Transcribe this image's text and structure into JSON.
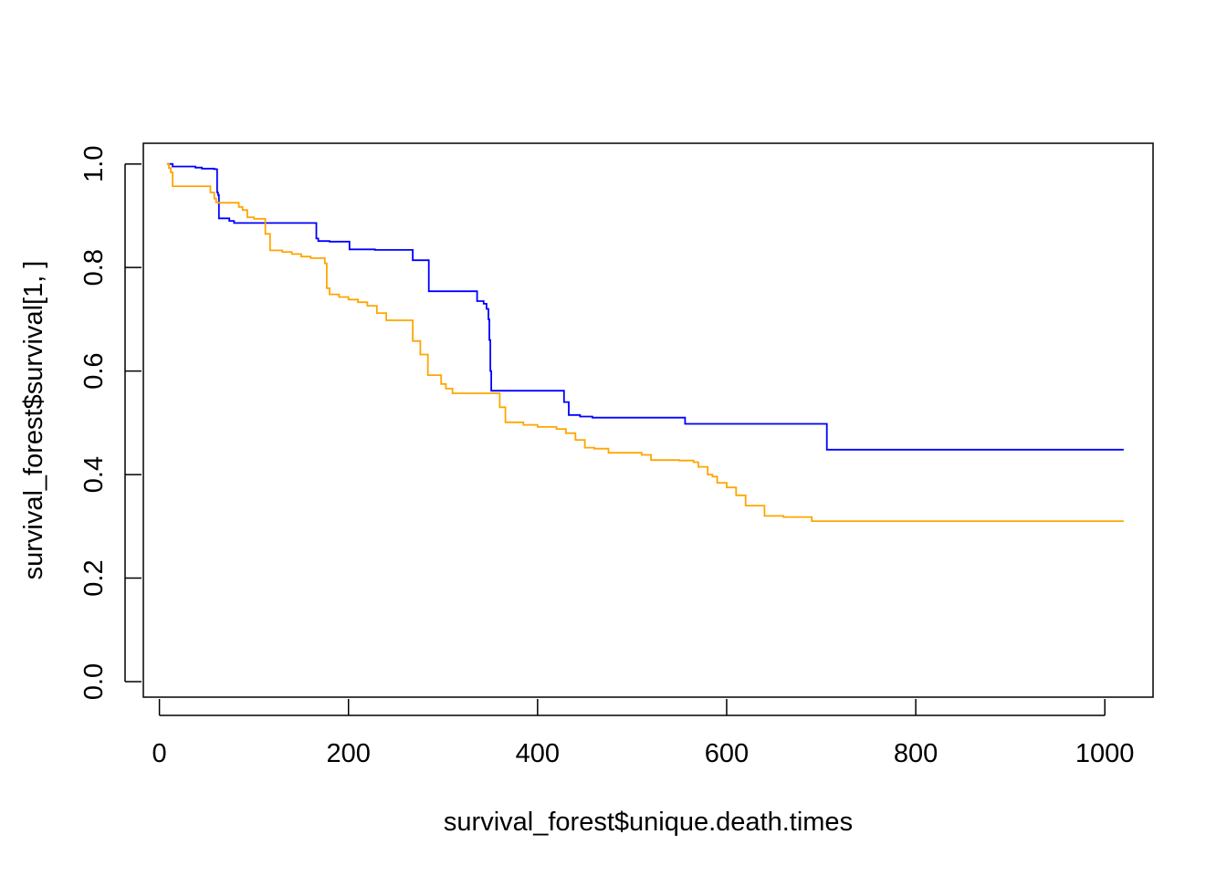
{
  "chart_data": {
    "type": "line",
    "title": "",
    "xlabel": "survival_forest$unique.death.times",
    "ylabel": "survival_forest$survival[1, ]",
    "xlim": [
      -17,
      1051
    ],
    "ylim": [
      -0.03,
      1.04
    ],
    "x_ticks": [
      0,
      200,
      400,
      600,
      800,
      1000
    ],
    "x_tick_labels": [
      "0",
      "200",
      "400",
      "600",
      "800",
      "1000"
    ],
    "y_ticks": [
      0.0,
      0.2,
      0.4,
      0.6,
      0.8,
      1.0
    ],
    "y_tick_labels": [
      "0.0",
      "0.2",
      "0.4",
      "0.6",
      "0.8",
      "1.0"
    ],
    "grid": false,
    "legend": "none",
    "series": [
      {
        "color": "#0000ff",
        "step": true,
        "x": [
          8,
          14,
          38,
          45,
          58,
          61,
          62,
          63,
          74,
          79,
          166,
          168,
          180,
          201,
          228,
          268,
          285,
          336,
          343,
          346,
          348,
          349,
          350,
          351,
          428,
          433,
          445,
          458,
          556,
          590,
          690,
          706,
          1020
        ],
        "y": [
          1.0,
          0.995,
          0.993,
          0.991,
          0.99,
          0.945,
          0.94,
          0.895,
          0.89,
          0.886,
          0.856,
          0.851,
          0.85,
          0.835,
          0.834,
          0.814,
          0.754,
          0.735,
          0.73,
          0.72,
          0.7,
          0.66,
          0.6,
          0.562,
          0.54,
          0.515,
          0.512,
          0.51,
          0.498,
          0.498,
          0.498,
          0.448,
          0.448
        ]
      },
      {
        "color": "#ffa500",
        "step": true,
        "x": [
          8,
          10,
          12,
          14,
          54,
          58,
          60,
          62,
          84,
          88,
          93,
          100,
          112,
          117,
          130,
          140,
          150,
          160,
          175,
          177,
          180,
          190,
          200,
          210,
          220,
          230,
          240,
          268,
          276,
          284,
          298,
          303,
          310,
          360,
          366,
          385,
          400,
          420,
          430,
          440,
          450,
          460,
          475,
          510,
          520,
          550,
          565,
          570,
          580,
          585,
          590,
          600,
          610,
          620,
          640,
          660,
          690,
          1020
        ],
        "y": [
          1.0,
          0.992,
          0.984,
          0.957,
          0.945,
          0.933,
          0.926,
          0.925,
          0.917,
          0.911,
          0.897,
          0.894,
          0.865,
          0.833,
          0.83,
          0.826,
          0.821,
          0.818,
          0.808,
          0.76,
          0.748,
          0.743,
          0.738,
          0.733,
          0.726,
          0.712,
          0.698,
          0.658,
          0.632,
          0.592,
          0.575,
          0.566,
          0.557,
          0.53,
          0.501,
          0.496,
          0.492,
          0.488,
          0.48,
          0.467,
          0.452,
          0.45,
          0.442,
          0.438,
          0.428,
          0.427,
          0.424,
          0.415,
          0.4,
          0.396,
          0.384,
          0.375,
          0.36,
          0.34,
          0.32,
          0.318,
          0.31,
          0.31
        ]
      }
    ]
  }
}
